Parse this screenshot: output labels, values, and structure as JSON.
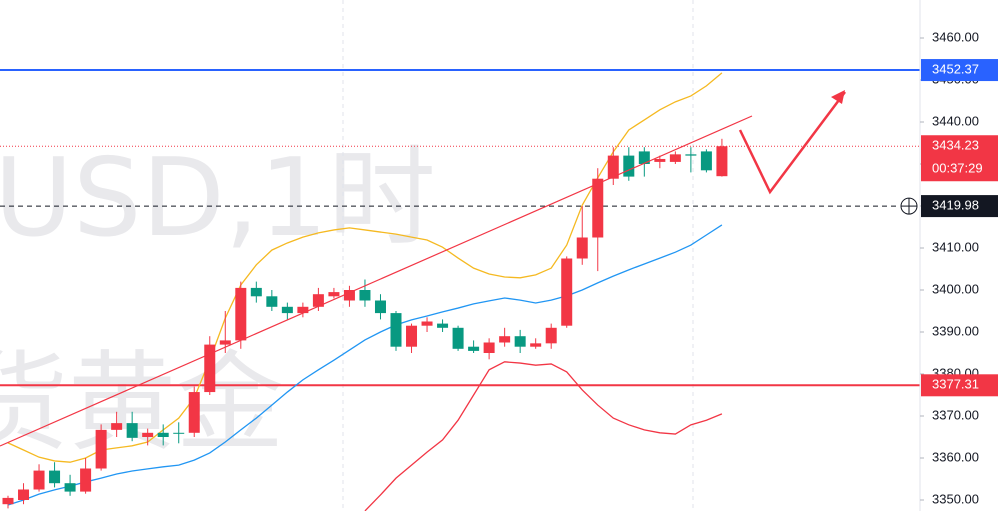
{
  "chart_data": {
    "type": "candlestick",
    "watermark": [
      "USD,1时",
      "货黄金"
    ],
    "ylim": [
      3347.38,
      3469.05
    ],
    "yticks": [
      {
        "value": 3350,
        "label": "3350.00"
      },
      {
        "value": 3360,
        "label": "3360.00"
      },
      {
        "value": 3370,
        "label": "3370.00"
      },
      {
        "value": 3380,
        "label": "3380.00"
      },
      {
        "value": 3390,
        "label": "3390.00"
      },
      {
        "value": 3400,
        "label": "3400.00"
      },
      {
        "value": 3410,
        "label": "3410.00"
      },
      {
        "value": 3420,
        "label": "3420.00"
      },
      {
        "value": 3430,
        "label": "3430.00"
      },
      {
        "value": 3440,
        "label": "3440.00"
      },
      {
        "value": 3450,
        "label": "3450.00"
      },
      {
        "value": 3460,
        "label": "3460.00"
      }
    ],
    "up_color": "#f23645",
    "down_color": "#089981",
    "candles": {
      "open": [
        3349,
        3350,
        3352.5,
        3357,
        3354,
        3352,
        3357.5,
        3366.7,
        3368.3,
        3365,
        3366,
        3366,
        3366,
        3375.7,
        3387,
        3388,
        3400.5,
        3398.5,
        3396,
        3394.5,
        3396,
        3398.5,
        3397.5,
        3400,
        3397.5,
        3394.5,
        3386.5,
        3391.5,
        3392,
        3391,
        3386.5,
        3385,
        3387.5,
        3389,
        3386.5,
        3387.3,
        3391.5,
        3407.5,
        3412.5,
        3426.5,
        3432,
        3433,
        3430.5,
        3430.5,
        3432.3,
        3433,
        3427.1
      ],
      "high": [
        3351,
        3354,
        3358.5,
        3359,
        3356,
        3360,
        3368,
        3371,
        3371,
        3367,
        3368,
        3368.5,
        3377,
        3389,
        3395,
        3402,
        3402,
        3400,
        3397,
        3397,
        3400.5,
        3400.5,
        3401,
        3402.5,
        3399,
        3395,
        3392,
        3393.5,
        3393,
        3391.5,
        3388,
        3388.5,
        3391,
        3390.5,
        3388.5,
        3392,
        3408,
        3420,
        3429,
        3434,
        3434,
        3434,
        3432,
        3433,
        3434,
        3433.5,
        3436
      ],
      "low": [
        3348,
        3349,
        3352,
        3353,
        3351,
        3351.5,
        3357,
        3365,
        3364,
        3363,
        3363,
        3363.5,
        3365,
        3375,
        3385,
        3386,
        3397,
        3395,
        3393,
        3393.5,
        3395,
        3398,
        3396,
        3396,
        3393,
        3385.5,
        3385,
        3390,
        3390,
        3385.5,
        3385,
        3383.5,
        3386.5,
        3385,
        3386,
        3386,
        3391,
        3406,
        3404.5,
        3425,
        3426,
        3427,
        3429,
        3430,
        3428,
        3428,
        3427
      ],
      "close": [
        3350.5,
        3352.5,
        3357,
        3354,
        3352,
        3357.5,
        3366.7,
        3368.3,
        3364.8,
        3366,
        3365,
        3365.8,
        3375.7,
        3387,
        3388,
        3400.5,
        3398.5,
        3396,
        3394.5,
        3396,
        3399,
        3399.5,
        3400,
        3397.5,
        3394.5,
        3386.5,
        3391.5,
        3392.5,
        3391,
        3386,
        3385.5,
        3387.5,
        3389,
        3386.5,
        3387.3,
        3391,
        3407.5,
        3412.5,
        3426.5,
        3432,
        3427,
        3430,
        3431.2,
        3432.3,
        3432,
        3428.5,
        3434.23
      ]
    },
    "lines": [
      {
        "color": "#f5b921",
        "values": [
          3363.6,
          3361.9,
          3360.2,
          3359.3,
          3359.0,
          3360.0,
          3361.9,
          3362.4,
          3362.9,
          3363.8,
          3366.7,
          3369.5,
          3374.3,
          3383.3,
          3393.3,
          3401.2,
          3406.0,
          3409.5,
          3411.2,
          3412.6,
          3413.6,
          3414.3,
          3414.8,
          3414.3,
          3413.8,
          3413.3,
          3412.6,
          3411.9,
          3410.2,
          3407.6,
          3405.2,
          3403.8,
          3403.1,
          3402.9,
          3403.6,
          3405.2,
          3410.7,
          3420.2,
          3426.7,
          3432.9,
          3438.1,
          3440.5,
          3442.9,
          3444.8,
          3446.2,
          3448.6,
          3451.7
        ]
      },
      {
        "color": "#2196f3",
        "values": [
          3348.8,
          3350.0,
          3351.4,
          3352.4,
          3353.3,
          3354.3,
          3355.2,
          3356.2,
          3356.9,
          3357.4,
          3357.9,
          3358.3,
          3359.5,
          3361.2,
          3363.8,
          3366.7,
          3369.5,
          3372.6,
          3375.7,
          3378.6,
          3381.0,
          3383.3,
          3385.7,
          3388.1,
          3390.0,
          3391.7,
          3392.9,
          3393.8,
          3394.8,
          3395.7,
          3396.7,
          3397.4,
          3398.1,
          3397.6,
          3396.9,
          3397.6,
          3398.6,
          3400.0,
          3401.7,
          3403.3,
          3404.8,
          3406.2,
          3407.6,
          3409.0,
          3410.7,
          3413.1,
          3415.5
        ]
      },
      {
        "color": "#f23645",
        "values": [
          null,
          null,
          null,
          null,
          null,
          null,
          null,
          null,
          null,
          null,
          null,
          null,
          null,
          null,
          null,
          null,
          null,
          null,
          null,
          null,
          null,
          null,
          null,
          3347.4,
          3351.2,
          3355.2,
          3358.3,
          3361.4,
          3364.3,
          3369.0,
          3375.0,
          3381.0,
          3382.9,
          3382.6,
          3382.1,
          3382.4,
          3380.5,
          3376.2,
          3372.6,
          3369.5,
          3367.9,
          3366.7,
          3366.0,
          3365.7,
          3367.9,
          3369.0,
          3370.5
        ]
      }
    ],
    "price_lines": [
      {
        "value": 3452.37,
        "color": "#2962ff"
      },
      {
        "value": 3377.31,
        "color": "#f23645"
      }
    ],
    "countdown": "00:37:29",
    "crosshair": 3419.98
  }
}
